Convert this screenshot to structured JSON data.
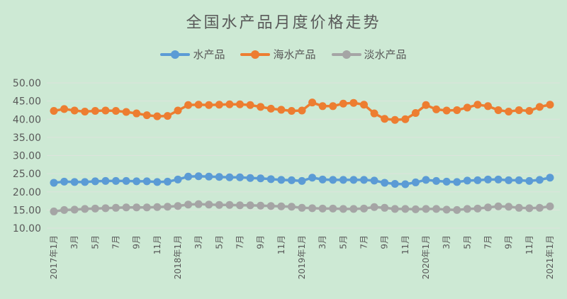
{
  "chart_data": {
    "type": "line",
    "title": "全国水产品月度价格走势",
    "xlabel": "",
    "ylabel": "",
    "ylim": [
      10,
      50
    ],
    "yticks": [
      "50.00",
      "45.00",
      "40.00",
      "35.00",
      "30.00",
      "25.00",
      "20.00",
      "15.00",
      "10.00"
    ],
    "grid": true,
    "legend_position": "top",
    "x": [
      "2017年1月",
      "2017年2月",
      "2017年3月",
      "2017年4月",
      "2017年5月",
      "2017年6月",
      "2017年7月",
      "2017年8月",
      "2017年9月",
      "2017年10月",
      "2017年11月",
      "2017年12月",
      "2018年1月",
      "2018年2月",
      "2018年3月",
      "2018年4月",
      "2018年5月",
      "2018年6月",
      "2018年7月",
      "2018年8月",
      "2018年9月",
      "2018年10月",
      "2018年11月",
      "2018年12月",
      "2019年1月",
      "2019年2月",
      "2019年3月",
      "2019年4月",
      "2019年5月",
      "2019年6月",
      "2019年7月",
      "2019年8月",
      "2019年9月",
      "2019年10月",
      "2019年11月",
      "2019年12月",
      "2020年1月",
      "2020年2月",
      "2020年3月",
      "2020年4月",
      "2020年5月",
      "2020年6月",
      "2020年7月",
      "2020年8月",
      "2020年9月",
      "2020年10月",
      "2020年11月",
      "2020年12月",
      "2021年1月"
    ],
    "xtick_labels": [
      "2017年1月",
      "3月",
      "5月",
      "7月",
      "9月",
      "11月",
      "2018年1月",
      "3月",
      "5月",
      "7月",
      "9月",
      "11月",
      "2019年1月",
      "3月",
      "5月",
      "7月",
      "9月",
      "11月",
      "2020年1月",
      "3月",
      "5月",
      "7月",
      "9月",
      "11月",
      "2021年1月"
    ],
    "series": [
      {
        "name": "水产品",
        "color": "#5b9bd5",
        "values": [
          22.5,
          22.8,
          22.7,
          22.7,
          22.9,
          23.0,
          23.0,
          23.0,
          22.9,
          22.9,
          22.7,
          22.8,
          23.4,
          24.2,
          24.3,
          24.2,
          24.1,
          24.0,
          24.0,
          23.8,
          23.7,
          23.5,
          23.3,
          23.2,
          23.0,
          23.9,
          23.4,
          23.3,
          23.3,
          23.3,
          23.3,
          23.1,
          22.5,
          22.2,
          22.1,
          22.6,
          23.3,
          23.0,
          22.8,
          22.7,
          23.1,
          23.2,
          23.4,
          23.4,
          23.2,
          23.2,
          23.0,
          23.3,
          23.9
        ]
      },
      {
        "name": "海水产品",
        "color": "#ed7d31",
        "values": [
          42.3,
          42.8,
          42.4,
          42.1,
          42.3,
          42.4,
          42.3,
          42.0,
          41.6,
          41.1,
          40.8,
          40.9,
          42.4,
          43.9,
          44.0,
          43.9,
          44.0,
          44.1,
          44.1,
          43.9,
          43.4,
          42.9,
          42.6,
          42.3,
          42.4,
          44.6,
          43.6,
          43.6,
          44.3,
          44.5,
          44.0,
          41.6,
          40.1,
          39.8,
          40.0,
          41.7,
          43.9,
          42.7,
          42.4,
          42.5,
          43.2,
          44.0,
          43.6,
          42.5,
          42.1,
          42.5,
          42.3,
          43.4,
          44.0
        ]
      },
      {
        "name": "淡水产品",
        "color": "#a5a5a5",
        "values": [
          14.6,
          15.0,
          15.1,
          15.3,
          15.4,
          15.5,
          15.6,
          15.7,
          15.7,
          15.7,
          15.8,
          15.9,
          16.1,
          16.5,
          16.6,
          16.5,
          16.4,
          16.4,
          16.3,
          16.3,
          16.2,
          16.1,
          16.0,
          15.9,
          15.6,
          15.5,
          15.4,
          15.4,
          15.3,
          15.3,
          15.4,
          15.8,
          15.6,
          15.3,
          15.3,
          15.2,
          15.3,
          15.3,
          15.1,
          15.0,
          15.3,
          15.4,
          15.7,
          16.0,
          15.9,
          15.6,
          15.5,
          15.6,
          16.0
        ]
      }
    ]
  },
  "legend": {
    "items": [
      {
        "label": "水产品",
        "color": "#5b9bd5"
      },
      {
        "label": "海水产品",
        "color": "#ed7d31"
      },
      {
        "label": "淡水产品",
        "color": "#a5a5a5"
      }
    ]
  },
  "colors": {
    "background": "#cde9d4",
    "gridline": "#dde3dc",
    "text": "#595959"
  }
}
